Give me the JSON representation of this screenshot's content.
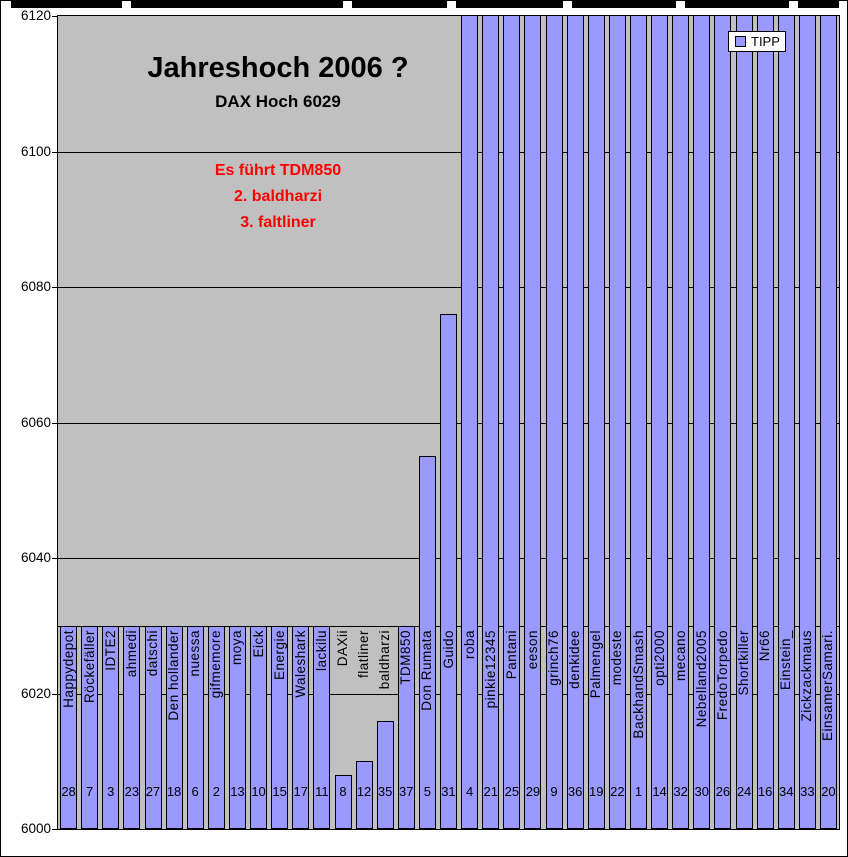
{
  "chart_data": {
    "type": "bar",
    "title": "Jahreshoch 2006 ?",
    "subtitle": "DAX Hoch 6029",
    "annotation_lines": [
      "Es führt TDM850",
      "2. baldharzi",
      "3. faltliner"
    ],
    "annotation_color": "#FF0000",
    "legend": {
      "label": "TIPP",
      "position": "top-right"
    },
    "series_name": "TIPP",
    "xlabel": "",
    "ylabel": "",
    "ylim": [
      6000,
      6120
    ],
    "y_ticks": [
      6000,
      6020,
      6040,
      6060,
      6080,
      6100,
      6120
    ],
    "grid": true,
    "plot_bg": "#C0C0C0",
    "bar_color": "#9999FF",
    "category_axis_cross_at": 6030,
    "note": "bars with value 6125 extend above the axis maximum and are clipped at the plot top; bottom numbers are the rank/order labels shown under each bar",
    "bars": [
      {
        "name": "Happydepot",
        "num": "28",
        "value": 6030
      },
      {
        "name": "Röckefäller",
        "num": "7",
        "value": 6030
      },
      {
        "name": "IDTE2",
        "num": "3",
        "value": 6030
      },
      {
        "name": "ahmedi",
        "num": "23",
        "value": 6030
      },
      {
        "name": "datschi",
        "num": "27",
        "value": 6030
      },
      {
        "name": "Den hollander",
        "num": "18",
        "value": 6030
      },
      {
        "name": "nuessa",
        "num": "6",
        "value": 6030
      },
      {
        "name": "gifmemore",
        "num": "2",
        "value": 6030
      },
      {
        "name": "moya",
        "num": "13",
        "value": 6030
      },
      {
        "name": "Eick",
        "num": "10",
        "value": 6030
      },
      {
        "name": "Energie",
        "num": "15",
        "value": 6030
      },
      {
        "name": "Waleshark",
        "num": "17",
        "value": 6030
      },
      {
        "name": "lackilu",
        "num": "11",
        "value": 6030
      },
      {
        "name": "DAXii",
        "num": "8",
        "value": 6008
      },
      {
        "name": "flatliner",
        "num": "12",
        "value": 6010
      },
      {
        "name": "baldharzi",
        "num": "35",
        "value": 6016
      },
      {
        "name": "TDM850",
        "num": "37",
        "value": 6030
      },
      {
        "name": "Don Rumata",
        "num": "5",
        "value": 6055
      },
      {
        "name": "Guido",
        "num": "31",
        "value": 6076
      },
      {
        "name": "roba",
        "num": "4",
        "value": 6125,
        "clipped": true
      },
      {
        "name": "pinkie12345",
        "num": "21",
        "value": 6125,
        "clipped": true
      },
      {
        "name": "Pantani",
        "num": "25",
        "value": 6125,
        "clipped": true
      },
      {
        "name": "eeson",
        "num": "29",
        "value": 6125,
        "clipped": true
      },
      {
        "name": "grinch76",
        "num": "9",
        "value": 6125,
        "clipped": true
      },
      {
        "name": "denkidee",
        "num": "36",
        "value": 6125,
        "clipped": true
      },
      {
        "name": "Palmengel",
        "num": "19",
        "value": 6125,
        "clipped": true
      },
      {
        "name": "modeste",
        "num": "22",
        "value": 6125,
        "clipped": true
      },
      {
        "name": "BackhandSmash",
        "num": "1",
        "value": 6125,
        "clipped": true
      },
      {
        "name": "opti2000",
        "num": "14",
        "value": 6125,
        "clipped": true
      },
      {
        "name": "mecano",
        "num": "32",
        "value": 6125,
        "clipped": true
      },
      {
        "name": "Nebelland2005",
        "num": "30",
        "value": 6125,
        "clipped": true
      },
      {
        "name": "FredoTorpedo",
        "num": "26",
        "value": 6125,
        "clipped": true
      },
      {
        "name": "Shortkiller",
        "num": "24",
        "value": 6125,
        "clipped": true
      },
      {
        "name": "Nr66",
        "num": "16",
        "value": 6125,
        "clipped": true
      },
      {
        "name": "Einstein_",
        "num": "34",
        "value": 6125,
        "clipped": true
      },
      {
        "name": "Zickzackmaus",
        "num": "33",
        "value": 6125,
        "clipped": true
      },
      {
        "name": "EinsamerSamari.",
        "num": "20",
        "value": 6125,
        "clipped": true
      }
    ]
  }
}
